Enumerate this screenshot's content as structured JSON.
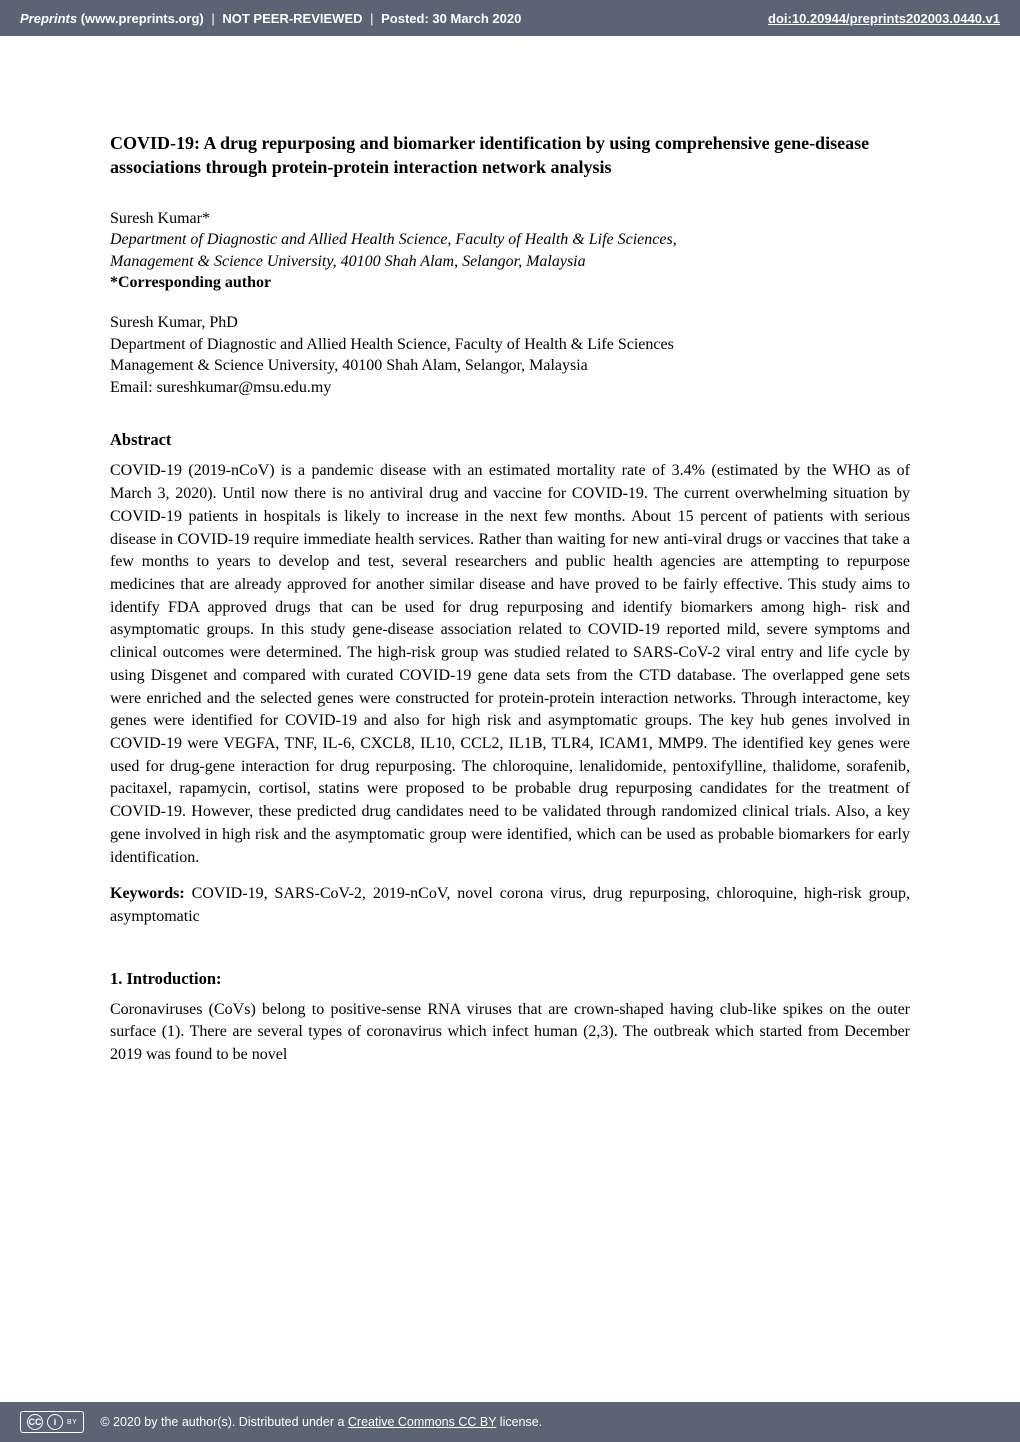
{
  "header": {
    "site_italic": "Preprints",
    "site_url": "(www.preprints.org)",
    "sep": "|",
    "not_peer": "NOT PEER-REVIEWED",
    "posted_label": "Posted: 30 March 2020",
    "doi": "doi:10.20944/preprints202003.0440.v1"
  },
  "title": "COVID-19: A drug repurposing and biomarker identification by using comprehensive gene-disease associations through protein-protein interaction network analysis",
  "author": {
    "name_line": "Suresh Kumar*",
    "affil_line1": "Department of Diagnostic and Allied Health Science, Faculty of Health & Life Sciences,",
    "affil_line2": "Management & Science University, 40100 Shah Alam, Selangor, Malaysia",
    "corresp_label": "*Corresponding  author"
  },
  "contact": {
    "line1": "Suresh Kumar, PhD",
    "line2": "Department of Diagnostic and Allied Health Science, Faculty of Health & Life Sciences",
    "line3": "Management & Science University, 40100 Shah Alam, Selangor, Malaysia",
    "line4": "Email: sureshkumar@msu.edu.my"
  },
  "abstract": {
    "heading": "Abstract",
    "body": "COVID-19 (2019-nCoV) is a pandemic disease with an estimated mortality rate of 3.4% (estimated by the WHO as of March 3, 2020). Until now there is no antiviral drug and vaccine for COVID-19. The current overwhelming situation by COVID-19 patients in hospitals is likely to increase in the next few months. About 15 percent of patients with serious disease in COVID-19 require immediate health services. Rather than waiting for new anti-viral drugs or vaccines that take a few months to years to develop and test, several researchers and public health agencies are attempting to repurpose medicines that are already approved for another similar disease and have proved to be fairly effective. This study aims to identify FDA approved drugs that can be used for drug repurposing and identify biomarkers among high- risk and asymptomatic groups. In this study gene-disease association related to COVID-19 reported mild, severe symptoms and clinical outcomes were determined. The high-risk group was studied related to SARS-CoV-2 viral entry and life cycle by using Disgenet and compared with curated COVID-19 gene data sets from the CTD database. The overlapped gene sets were enriched and the selected genes were constructed for protein-protein interaction networks. Through interactome, key genes were identified for COVID-19 and also for high risk and asymptomatic groups. The key hub genes involved in COVID-19 were VEGFA, TNF, IL-6, CXCL8, IL10, CCL2, IL1B, TLR4, ICAM1, MMP9. The identified key genes were used for drug-gene interaction for drug repurposing. The chloroquine, lenalidomide, pentoxifylline, thalidome, sorafenib, pacitaxel, rapamycin, cortisol, statins were proposed to be probable drug repurposing candidates for the treatment of COVID-19. However, these predicted drug candidates need to be validated through randomized clinical trials. Also, a key gene involved in high risk and the asymptomatic group were identified, which can be used as probable biomarkers for early identification."
  },
  "keywords": {
    "label": "Keywords:",
    "text": " COVID-19, SARS-CoV-2, 2019-nCoV, novel corona virus, drug repurposing, chloroquine, high-risk group, asymptomatic"
  },
  "introduction": {
    "heading": "1. Introduction:",
    "body": "Coronaviruses (CoVs) belong to positive-sense RNA viruses that are crown-shaped having club-like spikes on the outer surface (1). There are several types of coronavirus which infect human (2,3). The outbreak which started from December 2019 was found to be novel"
  },
  "footer": {
    "cc_label": "cc",
    "by_symbol": "🅘",
    "by_text": "BY",
    "copyright_prefix": "© 2020 by the author(s). Distributed under a ",
    "license_link_text": "Creative Commons CC BY",
    "copyright_suffix": " license."
  },
  "colors": {
    "header_bg": "#5a6475",
    "page_bg": "#ffffff",
    "text": "#000000",
    "header_text": "#ffffff"
  }
}
